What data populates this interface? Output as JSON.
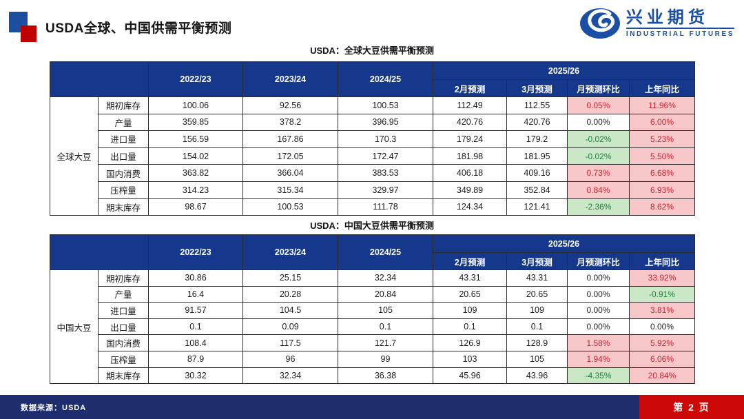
{
  "page": {
    "title": "USDA全球、中国供需平衡预测",
    "logo": {
      "cn": "兴业期货",
      "en": "INDUSTRIAL FUTURES"
    },
    "footer": {
      "source": "数据来源：USDA",
      "page": "第 2 页"
    }
  },
  "colors": {
    "header_navy": "#16388C",
    "footer_navy": "#1E2D6E",
    "accent_red": "#CC0808",
    "title_square_blue": "#1C4FA0",
    "title_square_red": "#C00000",
    "logo_blue": "#1A4FA5",
    "pink_bg": "#F8C7CA",
    "pink_text": "#C5242E",
    "green_bg": "#CBE8C6",
    "green_text": "#1E7E3C"
  },
  "tables": [
    {
      "title": "USDA：全球大豆供需平衡预测",
      "group_label": "全球大豆",
      "years": [
        "2022/23",
        "2023/24",
        "2024/25"
      ],
      "group_2025": "2025/26",
      "sub_headers": [
        "2月预测",
        "3月预测",
        "月预测环比",
        "上年同比"
      ],
      "rows": [
        {
          "label": "期初库存",
          "values": [
            "100.06",
            "92.56",
            "100.53",
            "112.49",
            "112.55"
          ],
          "mom": {
            "text": "0.05%",
            "style": "pink"
          },
          "yoy": {
            "text": "11.96%",
            "style": "pink"
          }
        },
        {
          "label": "产量",
          "values": [
            "359.85",
            "378.2",
            "396.95",
            "420.76",
            "420.76"
          ],
          "mom": {
            "text": "0.00%",
            "style": "plain"
          },
          "yoy": {
            "text": "6.00%",
            "style": "pink"
          }
        },
        {
          "label": "进口量",
          "values": [
            "156.59",
            "167.86",
            "170.3",
            "179.24",
            "179.2"
          ],
          "mom": {
            "text": "-0.02%",
            "style": "green"
          },
          "yoy": {
            "text": "5.23%",
            "style": "pink"
          }
        },
        {
          "label": "出口量",
          "values": [
            "154.02",
            "172.05",
            "172.47",
            "181.98",
            "181.95"
          ],
          "mom": {
            "text": "-0.02%",
            "style": "green"
          },
          "yoy": {
            "text": "5.50%",
            "style": "pink"
          }
        },
        {
          "label": "国内消费",
          "values": [
            "363.82",
            "366.04",
            "383.53",
            "406.18",
            "409.16"
          ],
          "mom": {
            "text": "0.73%",
            "style": "pink"
          },
          "yoy": {
            "text": "6.68%",
            "style": "pink"
          }
        },
        {
          "label": "压榨量",
          "values": [
            "314.23",
            "315.34",
            "329.97",
            "349.89",
            "352.84"
          ],
          "mom": {
            "text": "0.84%",
            "style": "pink"
          },
          "yoy": {
            "text": "6.93%",
            "style": "pink"
          }
        },
        {
          "label": "期末库存",
          "values": [
            "98.67",
            "100.53",
            "111.78",
            "124.34",
            "121.41"
          ],
          "mom": {
            "text": "-2.36%",
            "style": "green"
          },
          "yoy": {
            "text": "8.62%",
            "style": "pink"
          }
        }
      ]
    },
    {
      "title": "USDA：中国大豆供需平衡预测",
      "group_label": "中国大豆",
      "years": [
        "2022/23",
        "2023/24",
        "2024/25"
      ],
      "group_2025": "2025/26",
      "sub_headers": [
        "2月预测",
        "3月预测",
        "月预测环比",
        "上年同比"
      ],
      "rows": [
        {
          "label": "期初库存",
          "values": [
            "30.86",
            "25.15",
            "32.34",
            "43.31",
            "43.31"
          ],
          "mom": {
            "text": "0.00%",
            "style": "plain"
          },
          "yoy": {
            "text": "33.92%",
            "style": "pink"
          }
        },
        {
          "label": "产量",
          "values": [
            "16.4",
            "20.28",
            "20.84",
            "20.65",
            "20.65"
          ],
          "mom": {
            "text": "0.00%",
            "style": "plain"
          },
          "yoy": {
            "text": "-0.91%",
            "style": "green"
          }
        },
        {
          "label": "进口量",
          "values": [
            "91.57",
            "104.5",
            "105",
            "109",
            "109"
          ],
          "mom": {
            "text": "0.00%",
            "style": "plain"
          },
          "yoy": {
            "text": "3.81%",
            "style": "pink"
          }
        },
        {
          "label": "出口量",
          "values": [
            "0.1",
            "0.09",
            "0.1",
            "0.1",
            "0.1"
          ],
          "mom": {
            "text": "0.00%",
            "style": "plain"
          },
          "yoy": {
            "text": "0.00%",
            "style": "plain"
          }
        },
        {
          "label": "国内消费",
          "values": [
            "108.4",
            "117.5",
            "121.7",
            "126.9",
            "128.9"
          ],
          "mom": {
            "text": "1.58%",
            "style": "pink"
          },
          "yoy": {
            "text": "5.92%",
            "style": "pink"
          }
        },
        {
          "label": "压榨量",
          "values": [
            "87.9",
            "96",
            "99",
            "103",
            "105"
          ],
          "mom": {
            "text": "1.94%",
            "style": "pink"
          },
          "yoy": {
            "text": "6.06%",
            "style": "pink"
          }
        },
        {
          "label": "期末库存",
          "values": [
            "30.32",
            "32.34",
            "36.38",
            "45.96",
            "43.96"
          ],
          "mom": {
            "text": "-4.35%",
            "style": "green"
          },
          "yoy": {
            "text": "20.84%",
            "style": "pink"
          }
        }
      ]
    }
  ]
}
